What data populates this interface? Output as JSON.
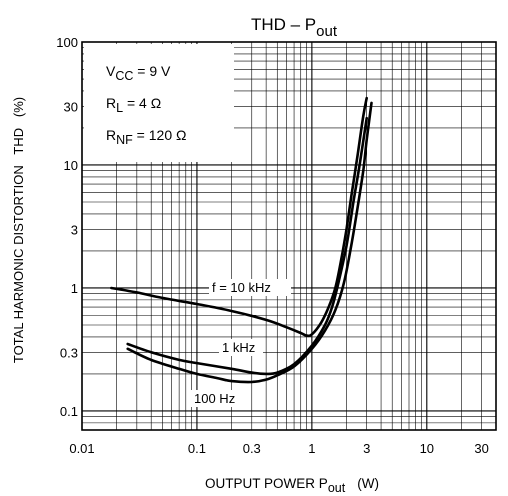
{
  "chart_data": {
    "type": "line",
    "title": "THD – Pout",
    "title_main": "THD – P",
    "title_sub": "out",
    "xlabel_main": "OUTPUT POWER   P",
    "xlabel_sub": "out",
    "xlabel_unit": "(W)",
    "ylabel": "TOTAL HARMONIC DISTORTION   THD   (%)",
    "x_scale": "log",
    "y_scale": "log",
    "xlim": [
      0.01,
      40
    ],
    "ylim": [
      0.07,
      100
    ],
    "x_ticks": [
      {
        "value": 0.01,
        "label": "0.01"
      },
      {
        "value": 0.1,
        "label": "0.1"
      },
      {
        "value": 0.3,
        "label": "0.3"
      },
      {
        "value": 1,
        "label": "1"
      },
      {
        "value": 3,
        "label": "3"
      },
      {
        "value": 10,
        "label": "10"
      },
      {
        "value": 30,
        "label": "30"
      }
    ],
    "y_ticks": [
      {
        "value": 100,
        "label": "100"
      },
      {
        "value": 30,
        "label": "30"
      },
      {
        "value": 10,
        "label": "10"
      },
      {
        "value": 3,
        "label": "3"
      },
      {
        "value": 1,
        "label": "1"
      },
      {
        "value": 0.3,
        "label": "0.3"
      },
      {
        "value": 0.1,
        "label": "0.1"
      }
    ],
    "grid": true,
    "conditions": [
      {
        "main": "V",
        "sub": "CC",
        "rest": " = 9 V"
      },
      {
        "main": "R",
        "sub": "L",
        "rest": " = 4 Ω"
      },
      {
        "main": "R",
        "sub": "NF",
        "rest": " = 120 Ω"
      }
    ],
    "series": [
      {
        "name": "f = 10 kHz",
        "x": [
          0.018,
          0.03,
          0.05,
          0.1,
          0.2,
          0.4,
          0.6,
          0.8,
          0.9,
          1.0,
          1.2,
          1.4,
          1.6,
          1.8,
          2.0,
          2.2,
          2.5,
          2.8,
          3.0
        ],
        "y": [
          1.0,
          0.92,
          0.83,
          0.74,
          0.65,
          0.55,
          0.48,
          0.43,
          0.41,
          0.42,
          0.52,
          0.7,
          1.0,
          1.7,
          3.0,
          5.5,
          12,
          25,
          35
        ]
      },
      {
        "name": "1 kHz",
        "x": [
          0.025,
          0.04,
          0.07,
          0.1,
          0.2,
          0.3,
          0.4,
          0.5,
          0.7,
          1.0,
          1.3,
          1.5,
          1.7,
          2.0,
          2.3,
          2.6,
          3.0
        ],
        "y": [
          0.35,
          0.3,
          0.26,
          0.245,
          0.22,
          0.205,
          0.2,
          0.205,
          0.24,
          0.34,
          0.5,
          0.7,
          1.1,
          2.2,
          5.0,
          10,
          24
        ]
      },
      {
        "name": "100 Hz",
        "x": [
          0.025,
          0.04,
          0.07,
          0.1,
          0.15,
          0.2,
          0.3,
          0.4,
          0.5,
          0.7,
          1.0,
          1.3,
          1.6,
          1.9,
          2.2,
          2.5,
          2.8,
          3.0,
          3.3
        ],
        "y": [
          0.32,
          0.26,
          0.22,
          0.2,
          0.185,
          0.175,
          0.172,
          0.18,
          0.195,
          0.23,
          0.32,
          0.45,
          0.66,
          1.1,
          2.2,
          4.5,
          9,
          16,
          32
        ]
      }
    ],
    "series_labels": [
      "f = 10 kHz",
      "1 kHz",
      "100 Hz"
    ]
  }
}
